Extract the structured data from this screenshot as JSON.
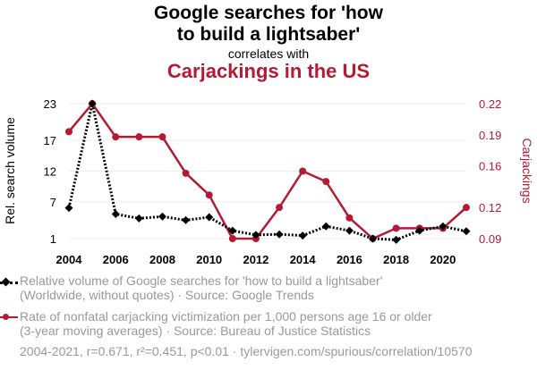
{
  "header": {
    "title": "Google searches for 'how to build a lightsaber'",
    "title_line1": "Google searches for 'how",
    "title_line2": "to build a lightsaber'",
    "connector": "correlates with",
    "subtitle": "Carjackings in the US"
  },
  "chart_data": {
    "type": "line",
    "x": [
      2004,
      2005,
      2006,
      2007,
      2008,
      2009,
      2010,
      2011,
      2012,
      2013,
      2014,
      2015,
      2016,
      2017,
      2018,
      2019,
      2020,
      2021
    ],
    "x_ticks": [
      "2004",
      "2006",
      "2008",
      "2010",
      "2012",
      "2014",
      "2016",
      "2018",
      "2020"
    ],
    "xlim": [
      2004,
      2021
    ],
    "series": [
      {
        "name": "Relative volume of Google searches for 'how to build a lightsaber'",
        "axis": "left",
        "ylabel": "Rel. search volume",
        "ylim": [
          1,
          23
        ],
        "y_ticks": [
          "1",
          "7",
          "12",
          "17",
          "23"
        ],
        "color": "#000000",
        "style": "dotted",
        "marker": "diamond",
        "values": [
          6,
          23,
          5,
          4.3,
          4.6,
          4,
          4.5,
          2.3,
          1.6,
          1.7,
          1.5,
          3,
          2.3,
          1,
          0.8,
          2.3,
          3,
          2.2
        ]
      },
      {
        "name": "Rate of nonfatal carjacking victimization per 1,000 persons age 16 or older",
        "axis": "right",
        "ylabel": "Carjackings",
        "ylim": [
          0.09,
          0.22
        ],
        "y_ticks": [
          "0.09",
          "0.12",
          "0.16",
          "0.19",
          "0.22"
        ],
        "color": "#b31b35",
        "style": "solid",
        "marker": "circle",
        "values": [
          0.193,
          0.22,
          0.188,
          0.188,
          0.188,
          0.153,
          0.132,
          0.09,
          0.09,
          0.12,
          0.155,
          0.145,
          0.11,
          0.09,
          0.1,
          0.1,
          0.1,
          0.12
        ]
      }
    ]
  },
  "legend": {
    "series1_line1": "Relative volume of Google searches for 'how to build a lightsaber'",
    "series1_line2": "(Worldwide, without quotes) · Source: Google Trends",
    "series2_line1": "Rate of nonfatal carjacking victimization per 1,000 persons age 16 or older",
    "series2_line2": "(3-year moving averages) · Source: Bureau of Justice Statistics"
  },
  "footer": "2004-2021, r=0.671, r²=0.451, p<0.01 · tylervigen.com/spurious/correlation/10570"
}
